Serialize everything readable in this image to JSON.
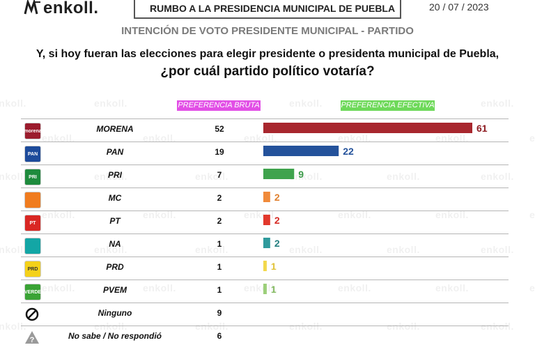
{
  "header": {
    "brand": "enkoll.",
    "title": "RUMBO A LA PRESIDENCIA MUNICIPAL DE PUEBLA",
    "date": "20 / 07 / 2023"
  },
  "subtitle": "INTENCIÓN DE VOTO PRESIDENTE MUNICIPAL - PARTIDO",
  "question": {
    "line1": "Y, si hoy fueran las elecciones para elegir presidente o presidenta municipal de Puebla,",
    "line2": "¿por cuál partido político votaría?"
  },
  "watermark": "enkoll.",
  "chart_data": {
    "type": "bar",
    "title": "INTENCIÓN DE VOTO PRESIDENTE MUNICIPAL - PARTIDO",
    "xlabel": "",
    "ylabel": "",
    "categories": [
      "MORENA",
      "PAN",
      "PRI",
      "MC",
      "PT",
      "NA",
      "PRD",
      "PVEM",
      "Ninguno",
      "No sabe / No respondió"
    ],
    "series": [
      {
        "name": "PREFERENCIA BRUTA",
        "values": [
          52,
          19,
          7,
          2,
          2,
          1,
          1,
          1,
          9,
          6
        ]
      },
      {
        "name": "PREFERENCIA EFECTIVA",
        "values": [
          61,
          22,
          9,
          2,
          2,
          2,
          1,
          1,
          null,
          null
        ]
      }
    ],
    "bar_colors": [
      "#a8272e",
      "#24529b",
      "#3fa34d",
      "#f08a3a",
      "#e2382c",
      "#2f9a9c",
      "#f2d84c",
      "#9ccf7a"
    ],
    "value_colors": [
      "#8e1d23",
      "#24529b",
      "#3a9a48",
      "#e0802f",
      "#d62c25",
      "#257f80",
      "#e0c237",
      "#82b95f"
    ],
    "xlim": [
      0,
      61
    ]
  },
  "logos": [
    {
      "name": "morena-logo-icon",
      "color": "#9b1c2d",
      "text": "morena"
    },
    {
      "name": "pan-logo-icon",
      "color": "#1d4b9b",
      "text": "PAN"
    },
    {
      "name": "pri-logo-icon",
      "color": "#1e8b3d",
      "text": "PRI"
    },
    {
      "name": "mc-logo-icon",
      "color": "#f07c1f",
      "text": ""
    },
    {
      "name": "pt-logo-icon",
      "color": "#d92723",
      "text": "PT"
    },
    {
      "name": "na-logo-icon",
      "color": "#13a6a5",
      "text": ""
    },
    {
      "name": "prd-logo-icon",
      "color": "#f4d11a",
      "text": "PRD"
    },
    {
      "name": "pvem-logo-icon",
      "color": "#3aa335",
      "text": "VERDE"
    },
    {
      "name": "ninguno-icon",
      "color": "#111111",
      "text": "⊘"
    },
    {
      "name": "no-sabe-icon",
      "color": "#8a8a8a",
      "text": "?"
    }
  ]
}
